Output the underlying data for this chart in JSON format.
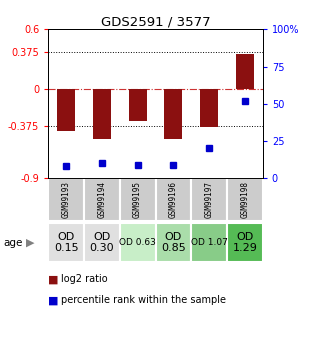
{
  "title": "GDS2591 / 3577",
  "samples": [
    "GSM99193",
    "GSM99194",
    "GSM99195",
    "GSM99196",
    "GSM99197",
    "GSM99198"
  ],
  "log2_ratios": [
    -0.42,
    -0.5,
    -0.32,
    -0.5,
    -0.38,
    0.35
  ],
  "percentile_ranks": [
    8,
    10,
    9,
    9,
    20,
    52
  ],
  "ylim_left": [
    -0.9,
    0.6
  ],
  "ylim_right": [
    0,
    100
  ],
  "yticks_left": [
    -0.9,
    -0.375,
    0,
    0.375,
    0.6
  ],
  "ytick_labels_left": [
    "-0.9",
    "-0.375",
    "0",
    "0.375",
    "0.6"
  ],
  "yticks_right": [
    0,
    25,
    50,
    75,
    100
  ],
  "ytick_labels_right": [
    "0",
    "25",
    "50",
    "75",
    "100%"
  ],
  "hlines_dotted": [
    -0.375,
    0.375
  ],
  "hline_dashdot": 0,
  "bar_color": "#8B1010",
  "dot_color": "#0000CC",
  "sample_cell_color": "#CCCCCC",
  "age_labels": [
    "OD\n0.15",
    "OD\n0.30",
    "OD 0.63",
    "OD\n0.85",
    "OD 1.07",
    "OD\n1.29"
  ],
  "age_bg_colors": [
    "#E0E0E0",
    "#E0E0E0",
    "#C8EEC8",
    "#AADDAA",
    "#88CC88",
    "#55BB55"
  ],
  "age_font_sizes": [
    8,
    8,
    6.5,
    8,
    6.5,
    8
  ]
}
